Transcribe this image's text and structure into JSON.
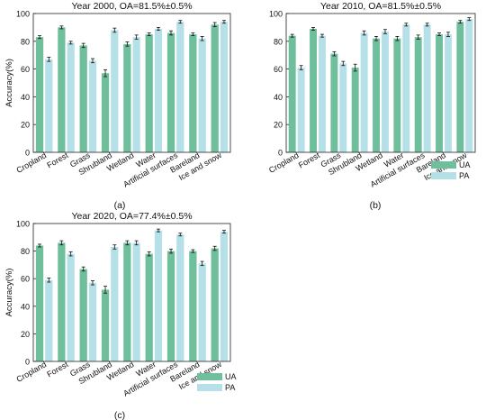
{
  "colors": {
    "ua": "#6fbf9d",
    "pa": "#b5e0e8",
    "error": "#111111"
  },
  "chart_data": [
    {
      "type": "bar",
      "title": "Year 2000, OA=81.5%±0.5%",
      "panel_label": "(a)",
      "ylabel": "Accuracy(%)",
      "ylim": [
        0,
        100
      ],
      "yticks": [
        0,
        20,
        40,
        60,
        80,
        100
      ],
      "categories": [
        "Cropland",
        "Forest",
        "Grass",
        "Shrubland",
        "Wetland",
        "Water",
        "Artificial surfaces",
        "Bareland",
        "Ice and snow"
      ],
      "series": [
        {
          "name": "UA",
          "values": [
            83,
            90,
            77,
            57,
            78,
            85,
            86,
            85,
            92
          ],
          "errors": [
            1,
            1,
            1.5,
            2.5,
            1.5,
            1,
            1.5,
            1,
            1.5
          ]
        },
        {
          "name": "PA",
          "values": [
            67,
            79,
            66,
            88,
            83,
            89,
            94,
            82,
            94
          ],
          "errors": [
            1.5,
            1,
            1.5,
            1.5,
            1.5,
            1,
            1,
            1.5,
            1
          ]
        }
      ],
      "legend": "none",
      "grid": false
    },
    {
      "type": "bar",
      "title": "Year 2010, OA=81.5%±0.5%",
      "panel_label": "(b)",
      "ylabel": "",
      "ylim": [
        0,
        100
      ],
      "yticks": [
        0,
        20,
        40,
        60,
        80,
        100
      ],
      "categories": [
        "Cropland",
        "Forest",
        "Grass",
        "Shrubland",
        "Wetland",
        "Water",
        "Artificial surfaces",
        "Bareland",
        "Ice and snow"
      ],
      "series": [
        {
          "name": "UA",
          "values": [
            84,
            89,
            71,
            61,
            82,
            82,
            83,
            85,
            94
          ],
          "errors": [
            1,
            1,
            1.5,
            2.5,
            1.5,
            1.5,
            1.5,
            1,
            1
          ]
        },
        {
          "name": "PA",
          "values": [
            61,
            84,
            64,
            86,
            87,
            92,
            92,
            85,
            96
          ],
          "errors": [
            1.5,
            1,
            1.5,
            1.5,
            1.5,
            1,
            1,
            1.5,
            1
          ]
        }
      ],
      "legend": "bottom-right",
      "grid": false
    },
    {
      "type": "bar",
      "title": "Year 2020, OA=77.4%±0.5%",
      "panel_label": "(c)",
      "ylabel": "Accuracy(%)",
      "ylim": [
        0,
        100
      ],
      "yticks": [
        0,
        20,
        40,
        60,
        80,
        100
      ],
      "categories": [
        "Cropland",
        "Forest",
        "Grass",
        "Shrubland",
        "Wetland",
        "Water",
        "Artificial surfaces",
        "Bareland",
        "Ice and snow"
      ],
      "series": [
        {
          "name": "UA",
          "values": [
            84,
            86,
            67,
            52,
            86,
            78,
            80,
            80,
            82
          ],
          "errors": [
            1,
            1.5,
            1.5,
            2.5,
            1.5,
            1.5,
            1.5,
            1,
            1.5
          ]
        },
        {
          "name": "PA",
          "values": [
            59,
            78,
            57,
            83,
            86,
            95,
            92,
            71,
            94
          ],
          "errors": [
            1.5,
            1.5,
            1.5,
            1.5,
            1.5,
            1,
            1,
            1.5,
            1
          ]
        }
      ],
      "legend": "bottom-right",
      "grid": false
    }
  ]
}
